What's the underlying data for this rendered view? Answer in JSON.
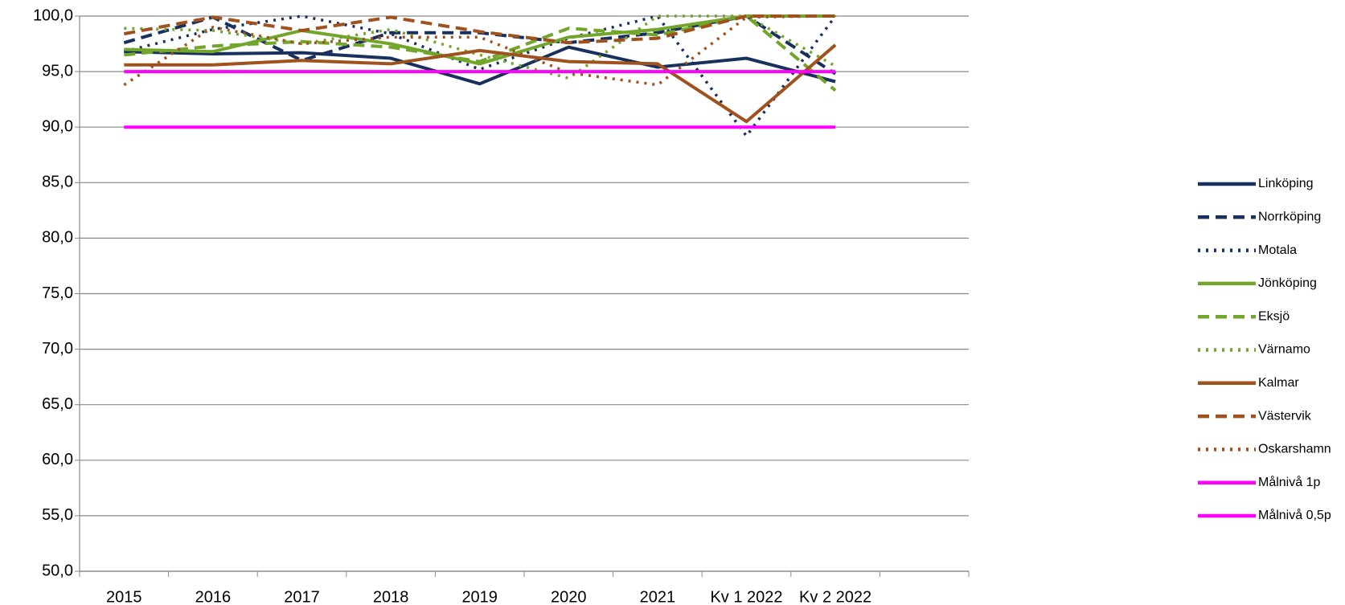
{
  "chart_data": {
    "type": "line",
    "categories": [
      "2015",
      "2016",
      "2017",
      "2018",
      "2019",
      "2020",
      "2021",
      "Kv 1 2022",
      "Kv 2 2022",
      null
    ],
    "ylim": [
      50,
      100
    ],
    "yticks": [
      {
        "value": 50,
        "label": "50,0"
      },
      {
        "value": 55,
        "label": "55,0"
      },
      {
        "value": 60,
        "label": "60,0"
      },
      {
        "value": 65,
        "label": "65,0"
      },
      {
        "value": 70,
        "label": "70,0"
      },
      {
        "value": 75,
        "label": "75,0"
      },
      {
        "value": 80,
        "label": "80,0"
      },
      {
        "value": 85,
        "label": "85,0"
      },
      {
        "value": 90,
        "label": "90,0"
      },
      {
        "value": 95,
        "label": "95,0"
      },
      {
        "value": 100,
        "label": "100,0"
      }
    ],
    "grid": true,
    "legend": "right",
    "series": [
      {
        "name": "Linköping",
        "color": "#17305e",
        "dash": "solid",
        "values": [
          96.8,
          96.6,
          96.7,
          96.2,
          93.9,
          97.2,
          95.4,
          96.2,
          94.1,
          null
        ]
      },
      {
        "name": "Norrköping",
        "color": "#17305e",
        "dash": "dash",
        "values": [
          97.6,
          99.9,
          96.0,
          98.5,
          98.5,
          97.6,
          98.5,
          100.0,
          94.8,
          null
        ]
      },
      {
        "name": "Motala",
        "color": "#17305e",
        "dash": "dot",
        "values": [
          96.8,
          98.8,
          100.0,
          98.4,
          95.2,
          98.0,
          100.0,
          89.2,
          100.0,
          null
        ]
      },
      {
        "name": "Jönköping",
        "color": "#72a62a",
        "dash": "solid",
        "values": [
          97.0,
          96.8,
          98.7,
          97.5,
          95.7,
          98.1,
          98.8,
          100.0,
          100.0,
          null
        ]
      },
      {
        "name": "Eksjö",
        "color": "#72a62a",
        "dash": "dash",
        "values": [
          96.5,
          97.3,
          97.7,
          97.2,
          95.9,
          98.9,
          98.3,
          100.0,
          93.3,
          null
        ]
      },
      {
        "name": "Värnamo",
        "color": "#72a62a",
        "dash": "dot",
        "values": [
          98.9,
          98.7,
          97.5,
          98.8,
          96.5,
          94.4,
          100.0,
          100.0,
          95.5,
          null
        ]
      },
      {
        "name": "Kalmar",
        "color": "#a0521e",
        "dash": "solid",
        "values": [
          95.6,
          95.6,
          96.0,
          95.7,
          96.9,
          95.9,
          95.7,
          90.5,
          97.4,
          null
        ]
      },
      {
        "name": "Västervik",
        "color": "#a0521e",
        "dash": "dash",
        "values": [
          98.4,
          99.9,
          98.7,
          99.9,
          98.6,
          97.6,
          98.0,
          100.0,
          100.0,
          null
        ]
      },
      {
        "name": "Oskarshamn",
        "color": "#a0521e",
        "dash": "dot",
        "values": [
          93.8,
          99.0,
          97.5,
          98.1,
          98.1,
          94.9,
          93.8,
          99.9,
          100.0,
          null
        ]
      },
      {
        "name": "Målnivå 1p",
        "color": "#ff00ff",
        "dash": "solid",
        "values": [
          95,
          95,
          95,
          95,
          95,
          95,
          95,
          95,
          95,
          null
        ]
      },
      {
        "name": "Målnivå 0,5p",
        "color": "#ff00ff",
        "dash": "solid",
        "values": [
          90,
          90,
          90,
          90,
          90,
          90,
          90,
          90,
          90,
          null
        ]
      }
    ]
  }
}
